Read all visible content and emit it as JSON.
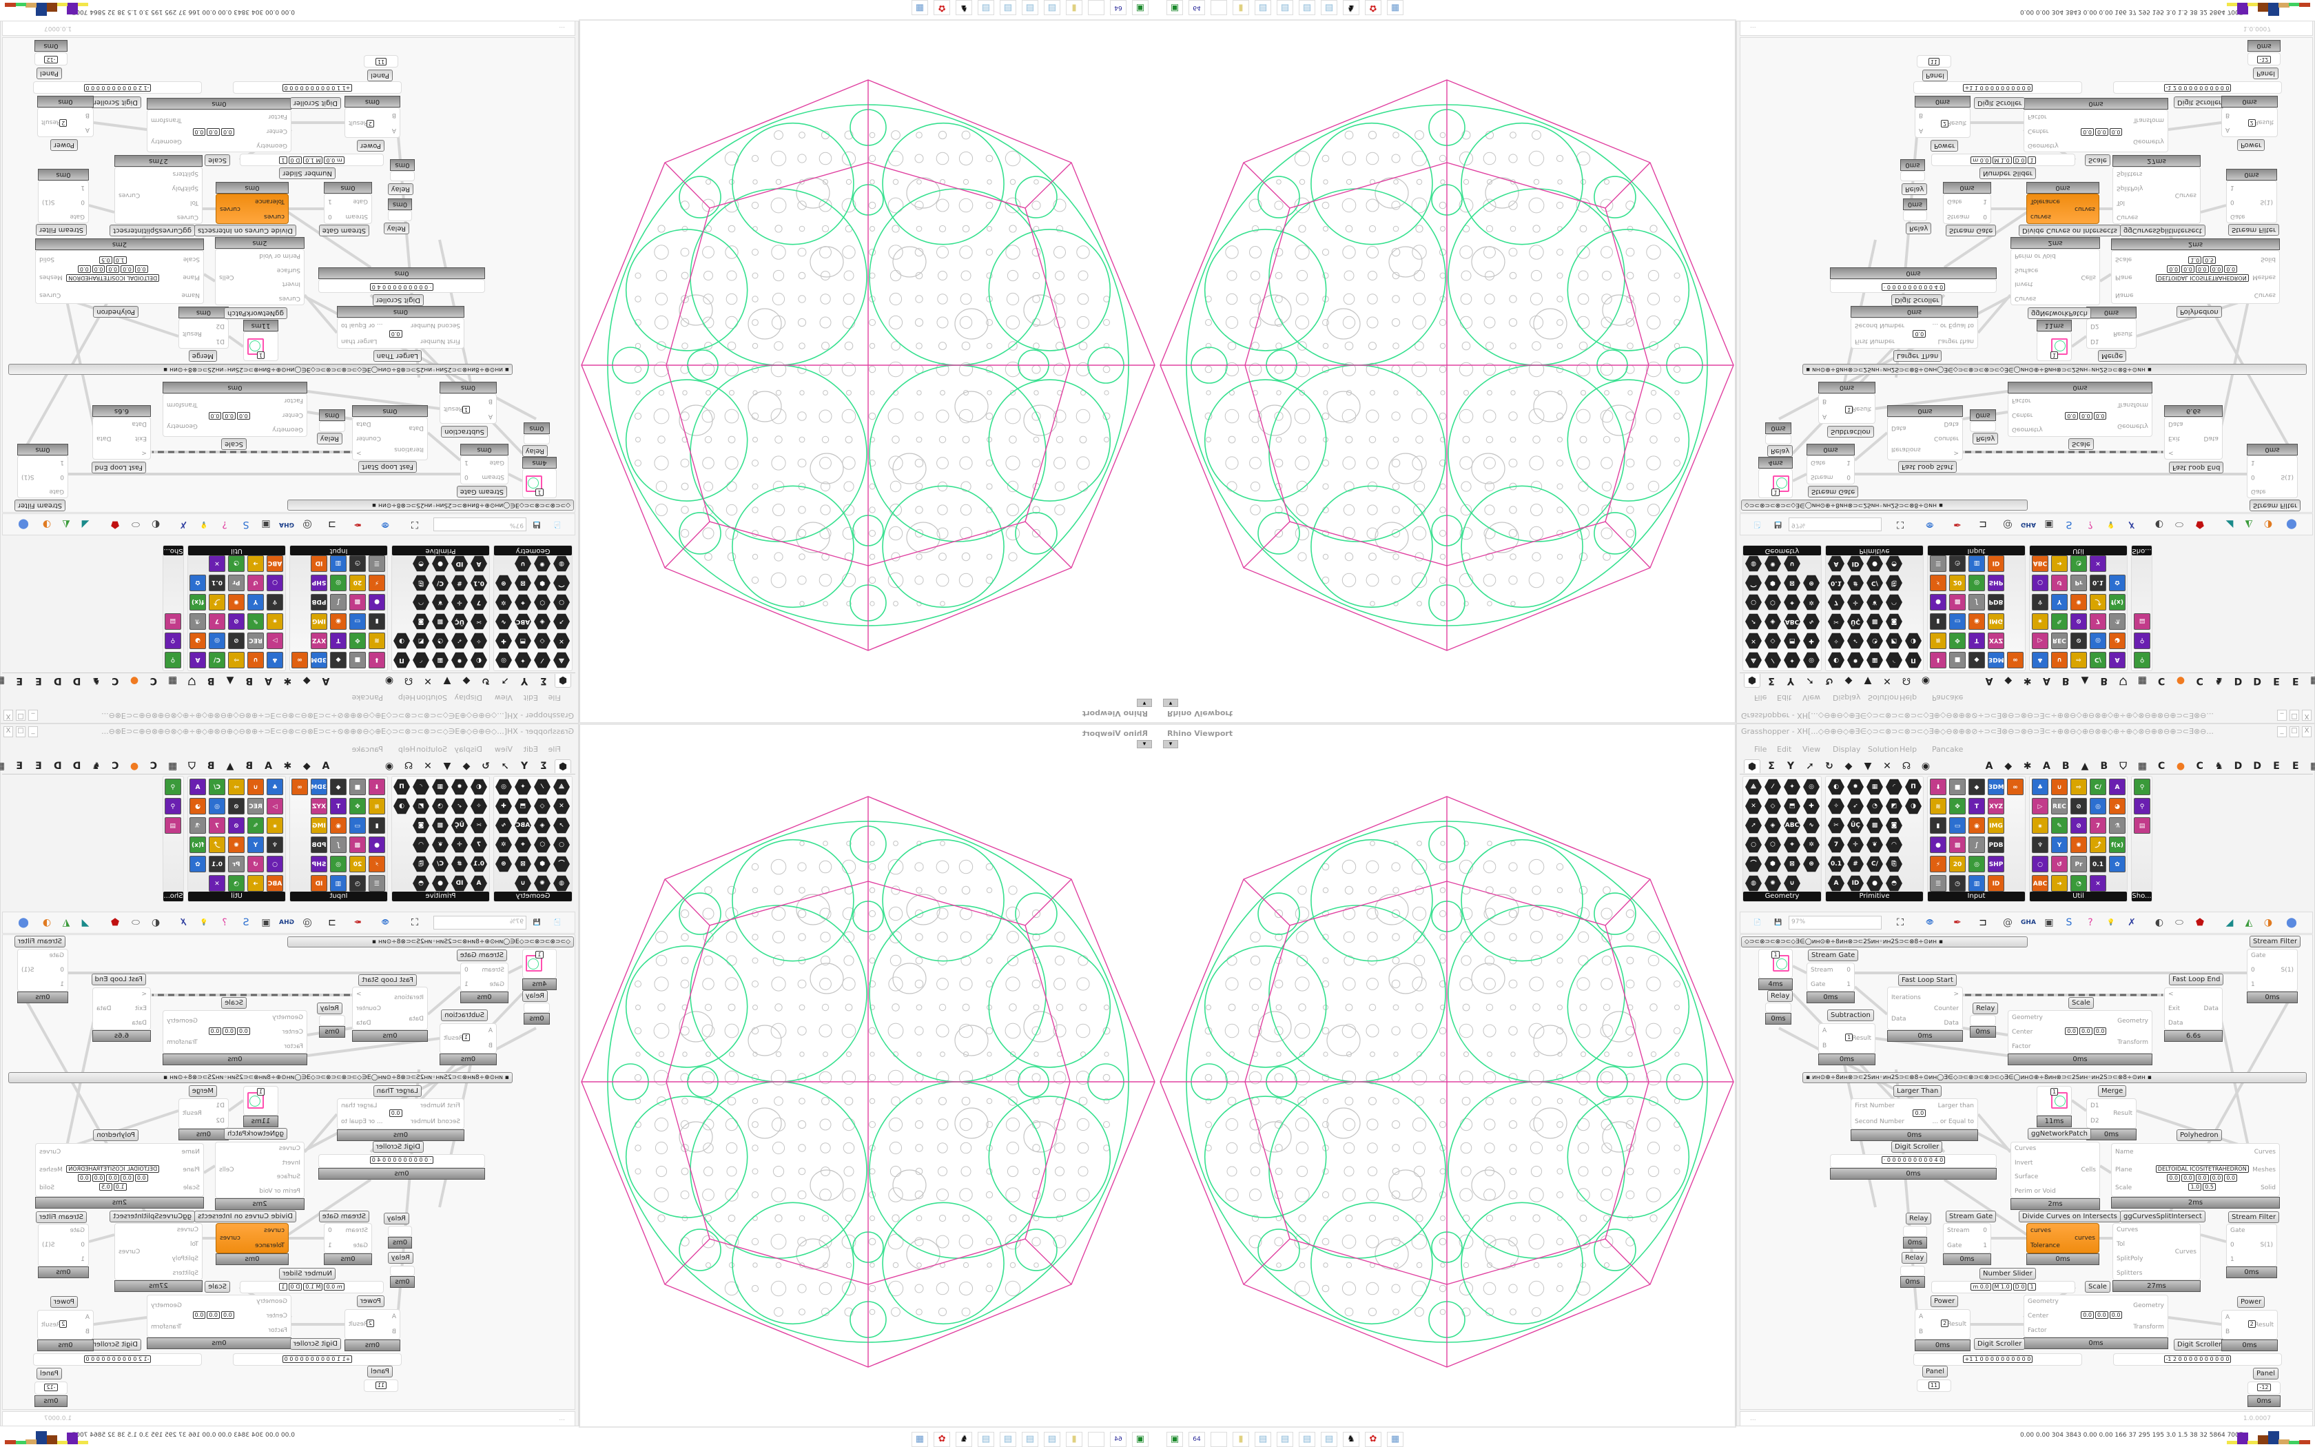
{
  "viewport": {
    "title": "Rhino Viewport",
    "menu_glyph": "▾"
  },
  "grasshopper": {
    "title": "Grasshopper - XH[...◇⊖⊕⊖◇⊕∃∈◇⊃⊂⊗⊃⊂⊗⊃⊂◇∃⊕◇⊖⊗⊕⊗⊘÷⊃⊂∃⊗⊖⊃⊗⊖⊃∃⊂÷⊕⊗⊖◇⊕⊖⊗⊕◇⊕÷⊕◇⊗⊖⊕⊗⊖⊕⊃⊂∃⊗⊖...",
    "window_buttons": [
      "_",
      "□",
      "X"
    ],
    "menu": [
      "File",
      "Edit",
      "View",
      "Display",
      "Solution",
      "Help",
      "Pancake"
    ],
    "tabs": [
      "⬢",
      "Σ",
      "Y",
      "➚",
      "↻",
      "◆",
      "▼",
      "✕",
      "☊",
      "◉",
      "A",
      "◆",
      "✱",
      "A",
      "B",
      "▲",
      "B",
      "⛉",
      "▦",
      "C",
      "●",
      "C",
      "♞",
      "D",
      "D",
      "E",
      "E",
      "▦"
    ],
    "ribbon": [
      {
        "label": "Geometry",
        "style": "hex",
        "cols": 4,
        "icons": [
          "⟁",
          "⁄",
          "✦",
          "◎",
          "✕",
          "◇",
          "⬒",
          "✚",
          "➚",
          "◈",
          "ABC",
          "∿",
          "○",
          "⬡",
          "⌖",
          "✲",
          "⌒",
          "⬢",
          "⊠",
          "⊛",
          "◍",
          "✺",
          "∪"
        ]
      },
      {
        "label": "Primitive",
        "style": "hex",
        "cols": 5,
        "icons": [
          "◐",
          "✸",
          "▦",
          "◜",
          "П",
          "✧",
          "➶",
          "◔",
          "◩",
          "◑",
          "✂",
          "ÜÇ",
          "▩",
          "◙",
          "",
          "7",
          "✛",
          "❦",
          "◠",
          "",
          "0.1",
          "#",
          "C/",
          "⎘",
          "",
          "A",
          "ID",
          "●",
          "◓",
          ""
        ]
      },
      {
        "label": "Input",
        "style": "sq",
        "cols": 5,
        "icons": [
          "⬇",
          "■",
          "◆",
          "3DM",
          "∞",
          "≋",
          "✥",
          "T",
          "XYZ",
          "",
          "▮",
          "▭",
          "◉",
          "IMG",
          "",
          "●",
          "▩",
          "∫",
          "PDB",
          "",
          "⚡",
          "20",
          "◎",
          "SHP",
          "",
          "☰",
          "◷",
          "▥",
          "ID",
          ""
        ]
      },
      {
        "label": "Util",
        "style": "sq",
        "cols": 5,
        "icons": [
          "♣",
          "∪",
          "⇨",
          "C/",
          "A",
          "▷",
          "REC",
          "⊘",
          "◎",
          "◕",
          "⚹",
          "✎",
          "⊘",
          "7",
          "⚗",
          "♆",
          "Y",
          "✺",
          "⤴",
          "f(x)",
          "○",
          "↺",
          "Pr",
          "0.1",
          "✿",
          "ABC",
          "➜",
          "◔",
          "✕",
          ""
        ]
      },
      {
        "label": "Sho...",
        "style": "sq",
        "cols": 1,
        "icons": [
          "⚲",
          "⚲",
          "▤"
        ]
      }
    ],
    "toolbar": {
      "zoom": "97%",
      "icons": [
        "📄",
        "💾",
        "⛶",
        "👁",
        "✒",
        "⊐",
        "@",
        "GHA",
        "▣",
        "S",
        "?",
        "💡",
        "✗",
        "◐",
        "⬭",
        "⬟",
        "◢",
        "◭",
        "◑",
        "⬤"
      ]
    },
    "groups": [
      "◇⊃⊂⊗⊃⊂⊗⊃⊂◇∃∈◯ин⊙⊕÷8ин⊗⊃⊂2Sин◦ин2S⊃⊂⊗8÷⊙ин   ▪",
      "▪        ин⊙⊕÷8ин⊗⊃⊂2Sин◦ин2S⊃⊂⊗8÷⊙ин◯∃∈◇⊃⊂⊗⊃⊂⊗⊃⊂◇∃∈◯ин⊙⊕÷8ин⊗⊃⊂2Sин◦ин2S⊃⊂⊗8÷⊙ин        ▪"
    ],
    "components": [
      {
        "type": "thumb",
        "label": "",
        "inputs": [],
        "outputs": [],
        "values": [
          "1"
        ],
        "timing": "4ms"
      },
      {
        "type": "relay",
        "label": "Relay",
        "inputs": [],
        "outputs": [],
        "values": [],
        "timing": "0ms"
      },
      {
        "type": "std",
        "label": "Stream Gate",
        "inputs": [
          "Stream",
          "Gate"
        ],
        "outputs": [
          "0",
          "1"
        ],
        "values": [],
        "timing": "0ms"
      },
      {
        "type": "std",
        "label": "Fast Loop Start",
        "inputs": [
          "Iterations",
          "Data"
        ],
        "outputs": [
          ">",
          "Counter",
          "Data"
        ],
        "values": [],
        "timing": "0ms"
      },
      {
        "type": "relay",
        "label": "Relay",
        "inputs": [],
        "outputs": [],
        "values": [],
        "timing": "0ms"
      },
      {
        "type": "std",
        "label": "Subtraction",
        "inputs": [
          "A",
          "B"
        ],
        "outputs": [
          "Result"
        ],
        "values": [
          "1"
        ],
        "timing": "0ms"
      },
      {
        "type": "std",
        "label": "Scale",
        "inputs": [
          "Geometry",
          "Center",
          "Factor"
        ],
        "outputs": [
          "Geometry",
          "Transform"
        ],
        "values": [
          "0.0",
          "0.0",
          "0.0"
        ],
        "timing": "0ms"
      },
      {
        "type": "std",
        "label": "Fast Loop End",
        "inputs": [
          "<",
          "Exit",
          "Data"
        ],
        "outputs": [
          "Data"
        ],
        "values": [],
        "timing": "6.6s"
      },
      {
        "type": "std",
        "label": "Stream Filter",
        "inputs": [
          "Gate",
          "0",
          "1"
        ],
        "outputs": [
          "S(1)"
        ],
        "values": [],
        "timing": "0ms"
      },
      {
        "type": "std",
        "label": "Larger Than",
        "inputs": [
          "First Number",
          "Second Number"
        ],
        "outputs": [
          "Larger than",
          "... or Equal to"
        ],
        "values": [
          "0.0"
        ],
        "timing": "0ms"
      },
      {
        "type": "scroller",
        "label": "Digit Scroller",
        "inputs": [],
        "outputs": [],
        "values": [
          "· 0 0 0 0 0 0 0 0 0 4 0"
        ],
        "timing": "0ms"
      },
      {
        "type": "thumb",
        "label": "",
        "inputs": [],
        "outputs": [],
        "values": [
          "1"
        ],
        "timing": "11ms"
      },
      {
        "type": "std",
        "label": "Merge",
        "inputs": [
          "D1",
          "D2"
        ],
        "outputs": [
          "Result"
        ],
        "values": [],
        "timing": "0ms"
      },
      {
        "type": "std",
        "label": "ggNetworkPatch",
        "inputs": [
          "Curves",
          "Invert",
          "Surface",
          "Perim or Void"
        ],
        "outputs": [
          "Cells"
        ],
        "values": [],
        "timing": "2ms"
      },
      {
        "type": "std",
        "label": "Polyhedron",
        "inputs": [
          "Name",
          "Plane",
          "Scale"
        ],
        "outputs": [
          "Curves",
          "Meshes",
          "Solid"
        ],
        "values": [
          "DELTOIDAL ICOSITETRAHEDRON",
          "0.0",
          "0.0",
          "0.0",
          "0.0",
          "0.0",
          "1.0",
          "0.5"
        ],
        "timing": "2ms"
      },
      {
        "type": "relay",
        "label": "Relay",
        "inputs": [],
        "outputs": [],
        "values": [],
        "timing": "0ms"
      },
      {
        "type": "std",
        "label": "Stream Gate",
        "inputs": [
          "Stream",
          "Gate"
        ],
        "outputs": [
          "0",
          "1"
        ],
        "values": [],
        "timing": "0ms"
      },
      {
        "type": "orange",
        "label": "Divide Curves on Intersects",
        "inputs": [
          "curves",
          "Tolerance"
        ],
        "outputs": [
          "curves"
        ],
        "values": [],
        "timing": "0ms"
      },
      {
        "type": "std",
        "label": "ggCurvesSplitIntersect",
        "inputs": [
          "Curves",
          "Tol",
          "SplitPoly",
          "Splitters"
        ],
        "outputs": [
          "Curves"
        ],
        "values": [],
        "timing": "27ms"
      },
      {
        "type": "std",
        "label": "Stream Filter",
        "inputs": [
          "Gate",
          "0",
          "1"
        ],
        "outputs": [
          "S(1)"
        ],
        "values": [],
        "timing": "0ms"
      },
      {
        "type": "relay",
        "label": "Relay",
        "inputs": [],
        "outputs": [],
        "values": [],
        "timing": "0ms"
      },
      {
        "type": "slider",
        "label": "Number Slider",
        "inputs": [],
        "outputs": [],
        "values": [
          "m 0.0",
          "M 1.0",
          "D 0",
          "1"
        ],
        "timing": ""
      },
      {
        "type": "std",
        "label": "Scale",
        "inputs": [
          "Geometry",
          "Center",
          "Factor"
        ],
        "outputs": [
          "Geometry",
          "Transform"
        ],
        "values": [
          "0.0",
          "0.0",
          "0.0"
        ],
        "timing": "0ms"
      },
      {
        "type": "std",
        "label": "Power",
        "inputs": [
          "A",
          "B"
        ],
        "outputs": [
          "Result"
        ],
        "values": [
          "2"
        ],
        "timing": "0ms"
      },
      {
        "type": "scroller",
        "label": "Digit Scroller",
        "inputs": [],
        "outputs": [],
        "values": [
          "+1 1 0 0 0 0 0 0 0 0 0 0"
        ],
        "timing": ""
      },
      {
        "type": "scroller",
        "label": "Digit Scroller",
        "inputs": [],
        "outputs": [],
        "values": [
          "-1 2 0 0 0 0 0 0 0 0 0 0"
        ],
        "timing": ""
      },
      {
        "type": "std",
        "label": "Power",
        "inputs": [
          "A",
          "B"
        ],
        "outputs": [
          "Result"
        ],
        "values": [
          "2"
        ],
        "timing": "0ms"
      },
      {
        "type": "panel",
        "label": "Panel",
        "inputs": [],
        "outputs": [],
        "values": [
          "11"
        ],
        "timing": ""
      },
      {
        "type": "panel",
        "label": "Panel",
        "inputs": [],
        "outputs": [],
        "values": [
          "-12"
        ],
        "timing": "0ms"
      }
    ],
    "status": {
      "left": "...",
      "version": "1.0.0007"
    },
    "perf": "0.00 0.00 304 3843 0.00 0.00 166 37 295 195 3.0 1.5 38 32 5864 7007",
    "perf_bars": [
      {
        "color": "#f2e64a",
        "level": 0.1
      },
      {
        "color": "#6a1fb0",
        "level": 0.9
      },
      {
        "color": "#f2e64a",
        "level": 0.1
      },
      {
        "color": "#8a3e10",
        "level": 0.6
      },
      {
        "color": "#1c3f8a",
        "level": 1.0
      },
      {
        "color": "#d8a860",
        "level": 0.25
      },
      {
        "color": "#3fd060",
        "level": 0.1
      },
      {
        "color": "#c04020",
        "level": 0.2
      }
    ]
  },
  "taskbar": [
    {
      "name": "terminal-icon",
      "glyph": "▣",
      "color": "#1c8a2c"
    },
    {
      "name": "floppy-icon",
      "glyph": "64",
      "color": "#2a2a9a"
    },
    {
      "name": "blank-icon",
      "glyph": "",
      "color": "#eee"
    },
    {
      "name": "folder-icon",
      "glyph": "▮",
      "color": "#e0d080"
    },
    {
      "name": "notepad-icon",
      "glyph": "▤",
      "color": "#8ab8d8"
    },
    {
      "name": "notepad-icon",
      "glyph": "▤",
      "color": "#8ab8d8"
    },
    {
      "name": "notepad-icon",
      "glyph": "▤",
      "color": "#8ab8d8"
    },
    {
      "name": "notepad-icon",
      "glyph": "▤",
      "color": "#8ab8d8"
    },
    {
      "name": "penguin-icon",
      "glyph": "♞",
      "color": "#111"
    },
    {
      "name": "red-app-icon",
      "glyph": "✿",
      "color": "#d02020"
    },
    {
      "name": "calculator-icon",
      "glyph": "▦",
      "color": "#6a9ad0"
    }
  ],
  "colors": {
    "magenta": "#e040a0",
    "green": "#35e08e",
    "pattern_gray": "#c4c4c4",
    "orange": "#f7931e"
  }
}
